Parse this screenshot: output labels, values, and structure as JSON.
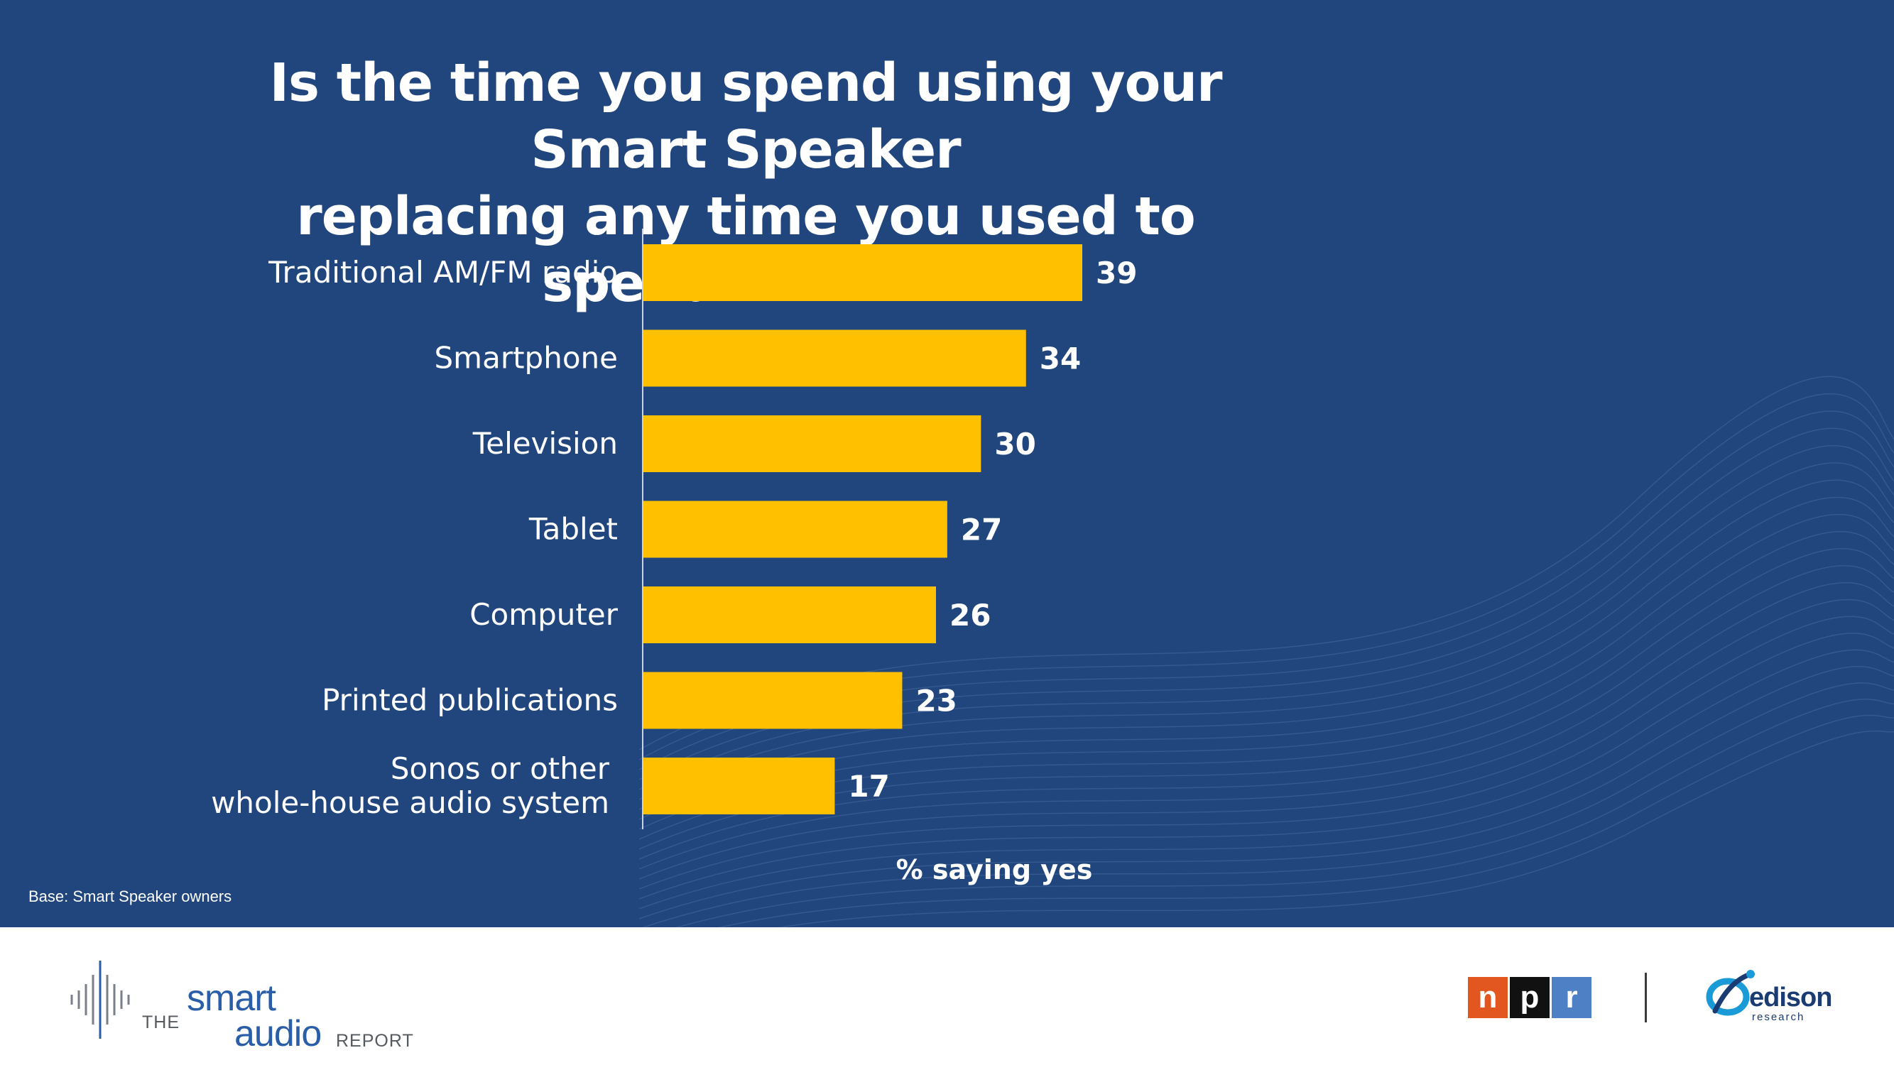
{
  "chart_data": {
    "type": "bar",
    "orientation": "horizontal",
    "title": "Is the time you spend using your Smart Speaker replacing any time you used to spend with...?",
    "title_lines": [
      "Is the time you spend using your Smart Speaker",
      "replacing any time you used to spend with...?"
    ],
    "categories": [
      "Traditional AM/FM radio",
      "Smartphone",
      "Television",
      "Tablet",
      "Computer",
      "Printed publications",
      "Sonos or other whole-house audio system"
    ],
    "category_lines": [
      [
        "Traditional AM/FM radio"
      ],
      [
        "Smartphone"
      ],
      [
        "Television"
      ],
      [
        "Tablet"
      ],
      [
        "Computer"
      ],
      [
        "Printed publications"
      ],
      [
        "Sonos or other",
        "whole-house audio system"
      ]
    ],
    "values": [
      39,
      34,
      30,
      27,
      26,
      23,
      17
    ],
    "xlabel": "% saying yes",
    "ylabel": "",
    "xlim": [
      0,
      100
    ],
    "data_labels": true,
    "grid": false,
    "legend": "none",
    "bar_color": "#ffc000",
    "background_color": "#20467d"
  },
  "footnote": "Base: Smart Speaker owners",
  "footer": {
    "smart_audio": {
      "the": "THE",
      "smart": "smart",
      "audio": "audio",
      "report": "REPORT",
      "color": "#2a5ea8"
    },
    "npr": {
      "letters": [
        "n",
        "p",
        "r"
      ],
      "colors": [
        "#e2561f",
        "#111111",
        "#4d80c4"
      ]
    },
    "edison": {
      "name": "edison",
      "sub": "research",
      "color": "#1b3c72",
      "accent": "#1a9ad6"
    }
  }
}
